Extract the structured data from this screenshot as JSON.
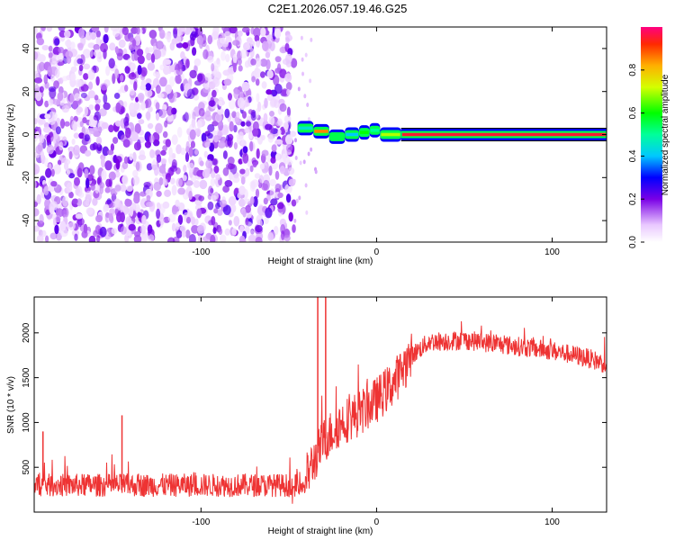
{
  "title": "C2E1.2026.057.19.46.G25",
  "chart_data": [
    {
      "type": "heatmap",
      "name": "spectrogram",
      "xlabel": "Height of straight line (km)",
      "ylabel": "Frequency (Hz)",
      "xlim": [
        -195,
        131
      ],
      "ylim": [
        -50,
        50
      ],
      "xticks": [
        -100,
        0,
        100
      ],
      "yticks": [
        -40,
        -20,
        0,
        20,
        40
      ],
      "noise_region_x": [
        -195,
        -47
      ],
      "signal_segments": [
        {
          "x0": -45,
          "x1": -36,
          "freq": 3,
          "amp": 0.45
        },
        {
          "x0": -36,
          "x1": -27,
          "freq": 1.5,
          "amp": 0.85
        },
        {
          "x0": -27,
          "x1": -18,
          "freq": -1,
          "amp": 0.55
        },
        {
          "x0": -18,
          "x1": -10,
          "freq": 0,
          "amp": 0.4
        },
        {
          "x0": -10,
          "x1": -4,
          "freq": 1,
          "amp": 0.6
        },
        {
          "x0": -4,
          "x1": 2,
          "freq": 2,
          "amp": 0.5
        },
        {
          "x0": 2,
          "x1": 14,
          "freq": 0,
          "amp": 0.7
        },
        {
          "x0": 14,
          "x1": 131,
          "freq": 0,
          "amp": 0.95
        }
      ],
      "colorbar": {
        "label": "Normalized spectral amplitude",
        "range": [
          0,
          1
        ],
        "ticks": [
          0.0,
          0.2,
          0.4,
          0.6,
          0.8
        ]
      }
    },
    {
      "type": "line",
      "name": "snr",
      "xlabel": "Height of straight line (km)",
      "ylabel": "SNR (10 * v/v)",
      "xlim": [
        -195,
        131
      ],
      "ylim": [
        0,
        2400
      ],
      "xticks": [
        -100,
        0,
        100
      ],
      "yticks": [
        500,
        1000,
        1500,
        2000
      ],
      "color": "#ee3333",
      "profile": [
        {
          "x": -195,
          "y": 300
        },
        {
          "x": -50,
          "y": 300
        },
        {
          "x": -40,
          "y": 400
        },
        {
          "x": -30,
          "y": 800
        },
        {
          "x": -20,
          "y": 1000
        },
        {
          "x": -10,
          "y": 1100
        },
        {
          "x": 0,
          "y": 1250
        },
        {
          "x": 10,
          "y": 1450
        },
        {
          "x": 20,
          "y": 1750
        },
        {
          "x": 30,
          "y": 1900
        },
        {
          "x": 50,
          "y": 1920
        },
        {
          "x": 80,
          "y": 1850
        },
        {
          "x": 100,
          "y": 1800
        },
        {
          "x": 120,
          "y": 1720
        },
        {
          "x": 131,
          "y": 1650
        }
      ],
      "spikes": [
        {
          "x": -33.5,
          "y": 2400
        },
        {
          "x": -29,
          "y": 2400
        },
        {
          "x": -145,
          "y": 1080
        },
        {
          "x": -190,
          "y": 900
        }
      ]
    }
  ]
}
